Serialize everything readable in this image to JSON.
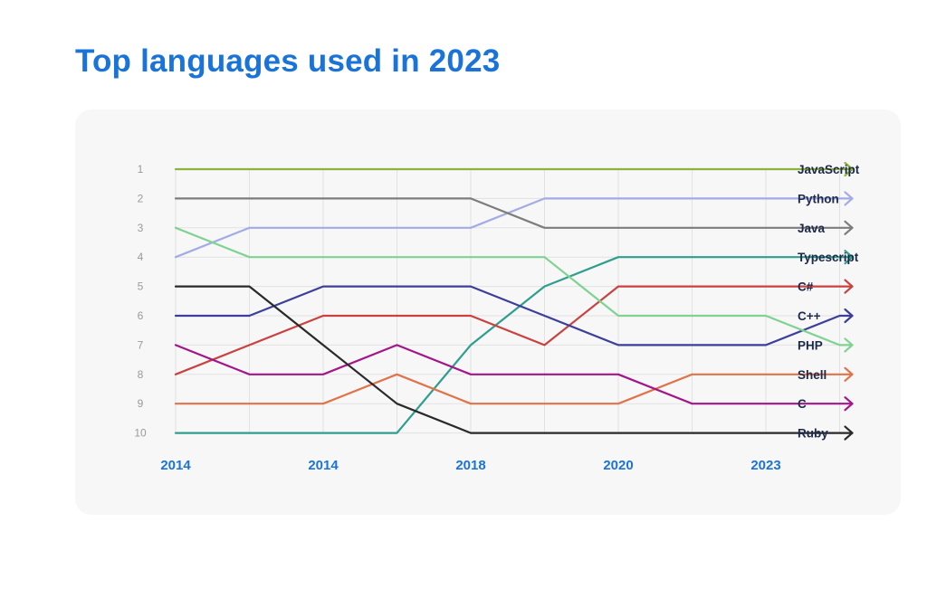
{
  "title": "Top languages used in 2023",
  "chart_data": {
    "type": "line",
    "title": "Top languages used in 2023",
    "subtype": "bump-chart",
    "x_labels": [
      "2014",
      "2014",
      "2018",
      "2020",
      "2023"
    ],
    "x_label_positions": [
      0,
      2,
      4,
      6,
      8
    ],
    "ranks": [
      "1",
      "2",
      "3",
      "4",
      "5",
      "6",
      "7",
      "8",
      "9",
      "10"
    ],
    "ylim": [
      1,
      10
    ],
    "y_inverted": true,
    "series": [
      {
        "name": "JavaScript",
        "color": "#8db33a",
        "values": [
          1,
          1,
          1,
          1,
          1,
          1,
          1,
          1,
          1,
          1
        ]
      },
      {
        "name": "Python",
        "color": "#a3abe6",
        "values": [
          4,
          3,
          3,
          3,
          3,
          2,
          2,
          2,
          2,
          2
        ]
      },
      {
        "name": "Java",
        "color": "#7d7d7d",
        "values": [
          2,
          2,
          2,
          2,
          2,
          3,
          3,
          3,
          3,
          3
        ]
      },
      {
        "name": "Typescript",
        "color": "#2f9e8f",
        "values": [
          10,
          10,
          10,
          10,
          7,
          5,
          4,
          4,
          4,
          4
        ]
      },
      {
        "name": "C#",
        "color": "#c9423f",
        "values": [
          8,
          7,
          6,
          6,
          6,
          7,
          5,
          5,
          5,
          5
        ]
      },
      {
        "name": "C++",
        "color": "#3b3f99",
        "values": [
          6,
          6,
          5,
          5,
          5,
          6,
          7,
          7,
          7,
          6
        ]
      },
      {
        "name": "PHP",
        "color": "#7fd391",
        "values": [
          3,
          4,
          4,
          4,
          4,
          4,
          6,
          6,
          6,
          7
        ]
      },
      {
        "name": "Shell",
        "color": "#e0734a",
        "values": [
          9,
          9,
          9,
          8,
          9,
          9,
          9,
          8,
          8,
          8
        ]
      },
      {
        "name": "C",
        "color": "#a3168a",
        "values": [
          7,
          8,
          8,
          7,
          8,
          8,
          8,
          9,
          9,
          9
        ]
      },
      {
        "name": "Ruby",
        "color": "#2a2a2a",
        "values": [
          5,
          5,
          7,
          9,
          10,
          10,
          10,
          10,
          10,
          10
        ]
      }
    ]
  }
}
